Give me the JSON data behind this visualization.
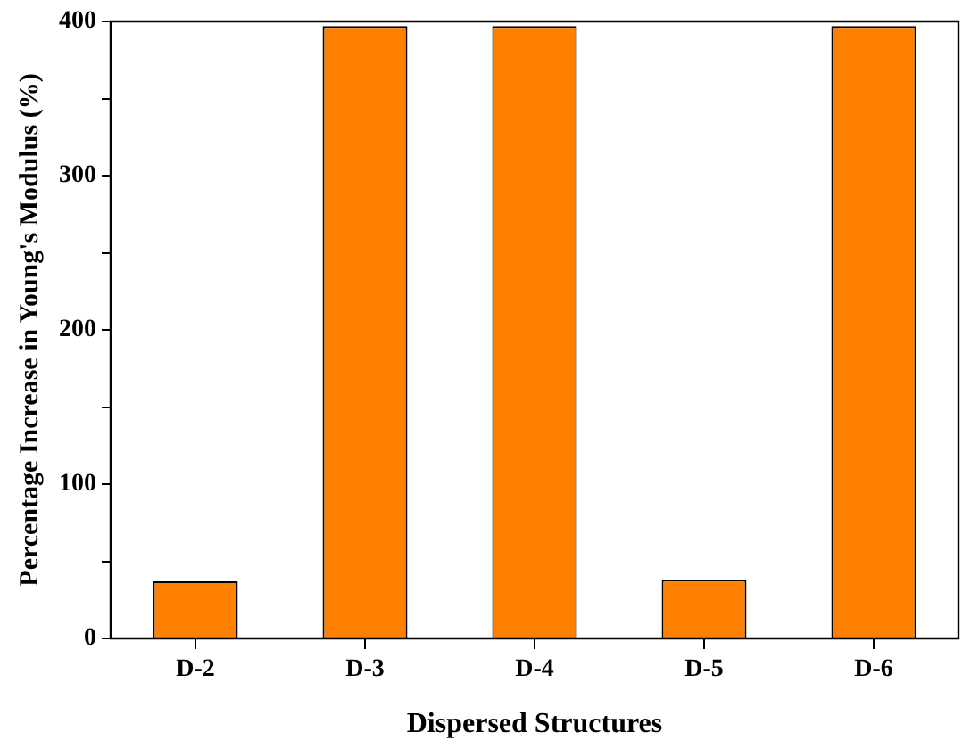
{
  "chart_data": {
    "type": "bar",
    "xlabel": "Dispersed Structures",
    "ylabel": "Percentage Increase in Young's Modulus (%)",
    "categories": [
      "D-2",
      "D-3",
      "D-4",
      "D-5",
      "D-6"
    ],
    "values": [
      37,
      397,
      397,
      38,
      397
    ],
    "color": "#ff8000",
    "ylim": [
      0,
      400
    ],
    "yticks": [
      0,
      {
        "value": 50,
        "label": null
      },
      100,
      {
        "value": 150,
        "label": null
      },
      200,
      {
        "value": 250,
        "label": null
      },
      300,
      {
        "value": 350,
        "label": null
      },
      400
    ],
    "grid": false,
    "legend": false
  }
}
